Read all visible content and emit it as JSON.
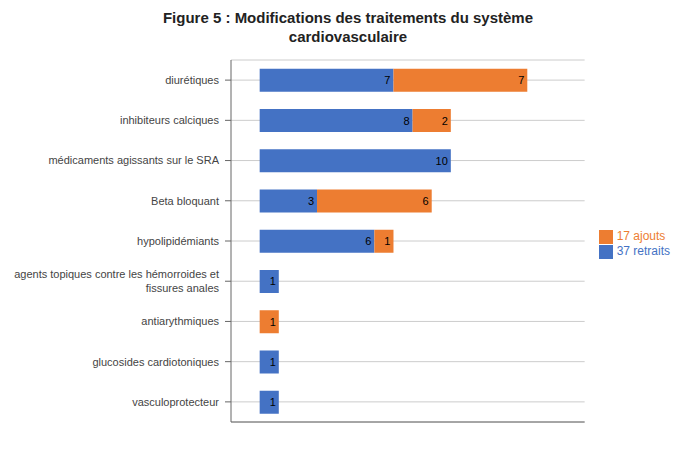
{
  "chart_data": {
    "type": "bar",
    "title": "Figure 5 : Modifications des traitements du système\ncardiovasculaire",
    "orientation": "horizontal",
    "stacked": true,
    "categories": [
      "vasculoprotecteur",
      "glucosides cardiotoniques",
      "antiarythmiques",
      "agents topiques contre les hémorroides et\nfissures anales",
      "hypolipidémiants",
      "Beta bloquant",
      "médicaments agissants sur le SRA",
      "inhibiteurs calciques",
      "diurétiques"
    ],
    "series": [
      {
        "name": "37 retraits",
        "color": "#4472C4",
        "values": [
          1,
          1,
          0,
          1,
          6,
          3,
          10,
          8,
          7
        ]
      },
      {
        "name": "17 ajouts",
        "color": "#ED7D31",
        "values": [
          0,
          0,
          1,
          0,
          1,
          6,
          0,
          2,
          7
        ]
      }
    ],
    "xlim": [
      -1.5,
      17
    ],
    "tick_labels": "y",
    "data_labels": true,
    "grid": true,
    "legend": "right"
  }
}
